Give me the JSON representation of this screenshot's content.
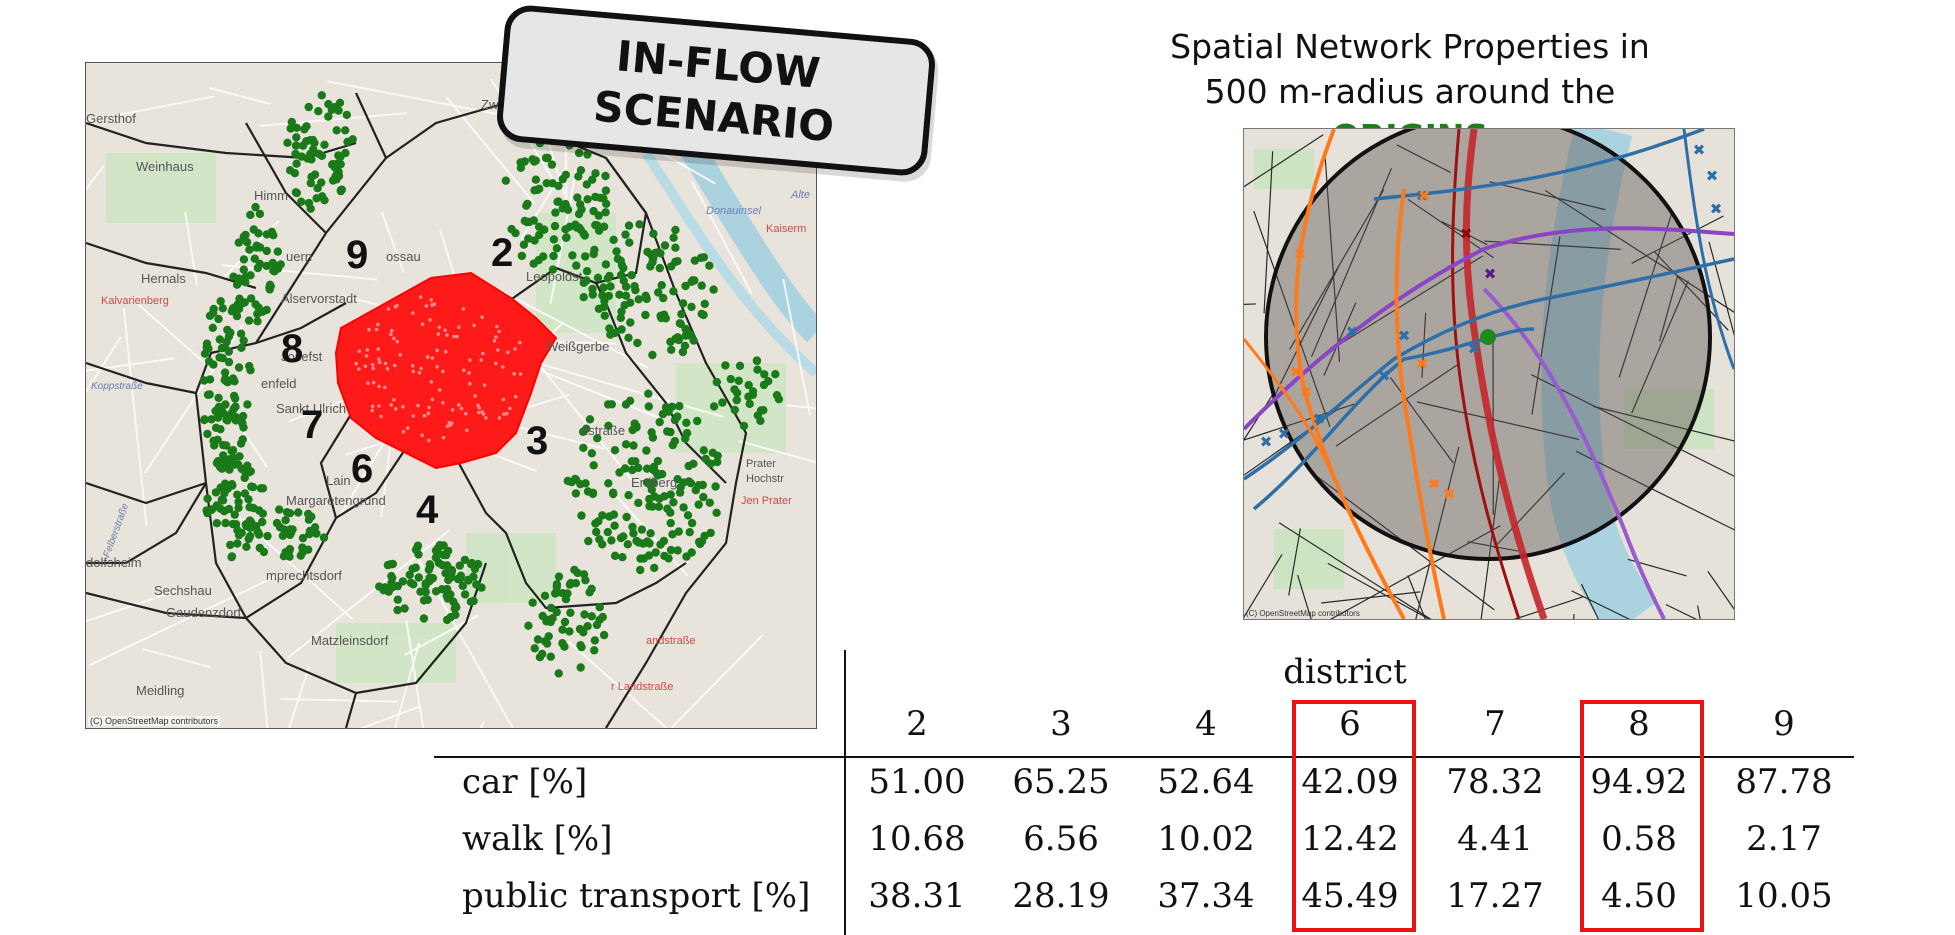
{
  "scenario_badge": {
    "line1": "IN-FLOW",
    "line2": "SCENARIO"
  },
  "left_map": {
    "district_labels": [
      "9",
      "2",
      "8",
      "7",
      "6",
      "3",
      "4"
    ],
    "place_names": [
      "Gersthof",
      "Weinhaus",
      "Hernals",
      "Kalvarienberg",
      "Alservorstadt",
      "Leopoldst",
      "Weißgerbe",
      "Himm",
      "uern",
      "ossau",
      "Josefst",
      "enfeld",
      "Sankt Ulrich",
      "Lain",
      "Margaretengrund",
      "Sechshau",
      "Gaudenzdorf",
      "Matzleinsdorf",
      "Meidling",
      "dolfsheim",
      "Felberstraße",
      "mprechtsdorf",
      "Koppstraße",
      "dstraße",
      "Erdberg",
      "Prater",
      "Hochstr",
      "Kaiserm",
      "Donauinsel",
      "Alte",
      "andstraße",
      "r Landstraße",
      "Zw",
      "Jen Prater"
    ],
    "attribution": "(C) OpenStreetMap contributors",
    "colors": {
      "inflow_origin_dots": "#1a7a1a",
      "destination_area": "#ff1a1a"
    }
  },
  "right_panel": {
    "title_line1": "Spatial Network Properties in",
    "title_line2_prefix": "500 m-radius around the ",
    "title_highlight": "ORIGINS",
    "attribution": "(C) OpenStreetMap contributors",
    "colors": {
      "highlight": "#1e7d1e",
      "tram": "#ff7a1a",
      "subway": "#8a44c4",
      "rail": "#c4262b",
      "bus": "#2d6fa8",
      "origin_marker": "#1e8a1e"
    }
  },
  "table": {
    "header_group": "district",
    "columns": [
      "2",
      "3",
      "4",
      "6",
      "7",
      "8",
      "9"
    ],
    "highlighted_columns": [
      "6",
      "8"
    ],
    "rows": [
      {
        "label": "car [%]",
        "values": [
          "51.00",
          "65.25",
          "52.64",
          "42.09",
          "78.32",
          "94.92",
          "87.78"
        ]
      },
      {
        "label": "walk [%]",
        "values": [
          "10.68",
          "6.56",
          "10.02",
          "12.42",
          "4.41",
          "0.58",
          "2.17"
        ]
      },
      {
        "label": "public transport [%]",
        "values": [
          "38.31",
          "28.19",
          "37.34",
          "45.49",
          "17.27",
          "4.50",
          "10.05"
        ]
      }
    ],
    "colors": {
      "highlight_box": "#ee1111"
    }
  }
}
